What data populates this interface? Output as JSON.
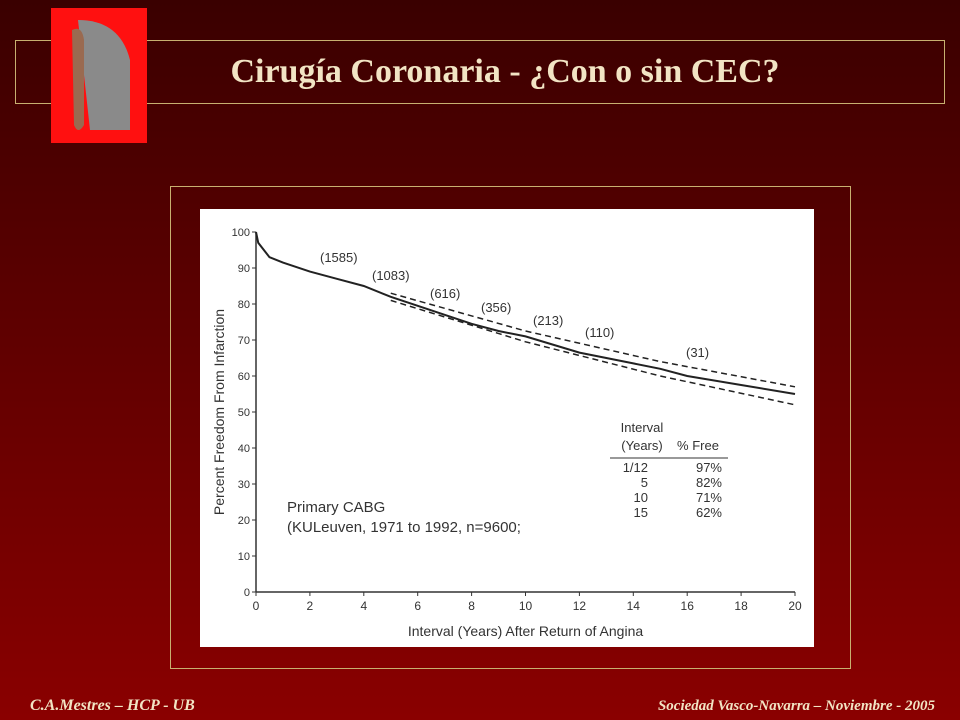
{
  "slide": {
    "title": "Cirugía Coronaria - ¿Con o sin CEC?",
    "footer_left": "C.A.Mestres – HCP - UB",
    "footer_right": "Sociedad Vasco-Navarra – Noviembre - 2005"
  },
  "chart_data": {
    "type": "line",
    "xlabel": "Interval (Years) After Return of Angina",
    "ylabel": "Percent Freedom From Infarction",
    "xlim": [
      0,
      20
    ],
    "ylim": [
      0,
      100
    ],
    "xticks": [
      0,
      2,
      4,
      6,
      8,
      10,
      12,
      14,
      16,
      18,
      20
    ],
    "yticks": [
      0,
      10,
      20,
      30,
      40,
      50,
      60,
      70,
      80,
      90,
      100
    ],
    "series": [
      {
        "color": "#222222",
        "dashed": false,
        "x": [
          0,
          0.083,
          0.5,
          1,
          2,
          3,
          4,
          5,
          6,
          7,
          8,
          9,
          10,
          12,
          14,
          15,
          16,
          18,
          20
        ],
        "values": [
          100,
          97,
          93,
          91.5,
          89,
          87,
          85,
          82,
          79.5,
          77,
          74.5,
          72.5,
          71,
          66.5,
          63.5,
          62,
          60,
          57.5,
          55
        ]
      },
      {
        "color": "#222222",
        "dashed": true,
        "x": [
          5,
          10,
          15,
          20
        ],
        "values": [
          83,
          72.5,
          64,
          57
        ]
      },
      {
        "color": "#222222",
        "dashed": true,
        "x": [
          5,
          10,
          15,
          20
        ],
        "values": [
          81,
          69.5,
          60,
          52
        ]
      }
    ],
    "annotations": [
      "(1585)",
      "(1083)",
      "(616)",
      "(356)",
      "(213)",
      "(110)",
      "(31)"
    ],
    "note": [
      "Primary CABG",
      "(KULeuven, 1971 to 1992, n=9600;"
    ],
    "table": {
      "header": [
        [
          "Interval",
          ""
        ],
        [
          "(Years)",
          "% Free"
        ]
      ],
      "rows": [
        [
          "1/12",
          "97%"
        ],
        [
          "5",
          "82%"
        ],
        [
          "10",
          "71%"
        ],
        [
          "15",
          "62%"
        ]
      ]
    }
  }
}
